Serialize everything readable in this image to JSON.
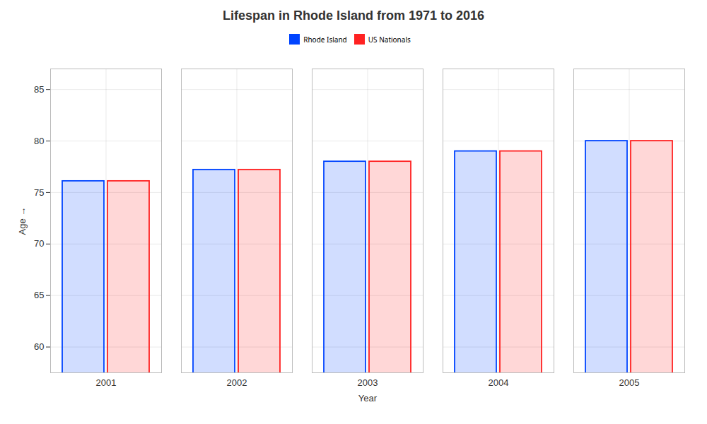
{
  "chart_data": {
    "type": "bar",
    "title": "Lifespan in Rhode Island from 1971 to 2016",
    "xlabel": "Year",
    "ylabel": "Age",
    "categories": [
      "2001",
      "2002",
      "2003",
      "2004",
      "2005"
    ],
    "series": [
      {
        "name": "Rhode Island",
        "color": "#0044ff",
        "values": [
          76.1,
          77.2,
          78.0,
          79.0,
          80.0
        ]
      },
      {
        "name": "US Nationals",
        "color": "#ff2222",
        "values": [
          76.1,
          77.2,
          78.0,
          79.0,
          80.0
        ]
      }
    ],
    "ylim": [
      57.5,
      87
    ],
    "yticks": [
      60,
      65,
      70,
      75,
      80,
      85
    ],
    "grid": true,
    "legend": "top"
  }
}
